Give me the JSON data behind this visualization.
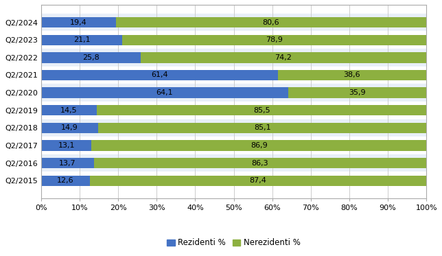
{
  "categories": [
    "Q2/2024",
    "Q2/2023",
    "Q2/2022",
    "Q2/2021",
    "Q2/2020",
    "Q2/2019",
    "Q2/2018",
    "Q2/2017",
    "Q2/2016",
    "Q2/2015"
  ],
  "rezidenti": [
    19.4,
    21.1,
    25.8,
    61.4,
    64.1,
    14.5,
    14.9,
    13.1,
    13.7,
    12.6
  ],
  "nerezidenti": [
    80.6,
    78.9,
    74.2,
    38.6,
    35.9,
    85.5,
    85.1,
    86.9,
    86.3,
    87.4
  ],
  "rezidenti_color": "#4472C4",
  "nerezidenti_color": "#8DB040",
  "background_color": "#FFFFFF",
  "plot_bg_color": "#FFFFFF",
  "row_alt_color": "#E8EFF8",
  "legend_rezidenti": "Rezidenti %",
  "legend_nerezidenti": "Nerezidenti %",
  "bar_height": 0.6,
  "xlim": [
    0,
    100
  ],
  "xtick_values": [
    0,
    10,
    20,
    30,
    40,
    50,
    60,
    70,
    80,
    90,
    100
  ],
  "xtick_labels": [
    "0%",
    "10%",
    "20%",
    "30%",
    "40%",
    "50%",
    "60%",
    "70%",
    "80%",
    "90%",
    "100%"
  ],
  "fontsize_ticks": 8,
  "fontsize_labels": 8,
  "fontsize_legend": 8.5
}
